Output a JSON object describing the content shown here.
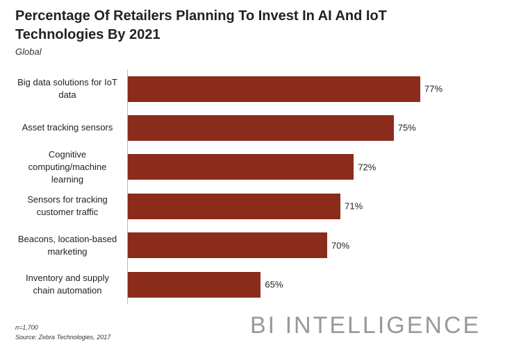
{
  "chart_data": {
    "type": "bar",
    "orientation": "horizontal",
    "title": "Percentage Of Retailers Planning To Invest In AI And IoT Technologies By 2021",
    "subtitle": "Global",
    "categories": [
      "Big data solutions for IoT data",
      "Asset tracking sensors",
      "Cognitive computing/machine learning",
      "Sensors for tracking customer traffic",
      "Beacons, location-based marketing",
      "Inventory and supply chain automation"
    ],
    "values": [
      77,
      75,
      72,
      71,
      70,
      65
    ],
    "value_labels": [
      "77%",
      "75%",
      "72%",
      "71%",
      "70%",
      "65%"
    ],
    "color": "#8b2b1b",
    "xlim": [
      55,
      77
    ],
    "notes": [
      "n=1,700",
      "Source: Zebra Technologies, 2017"
    ],
    "brand": "BI INTELLIGENCE"
  }
}
